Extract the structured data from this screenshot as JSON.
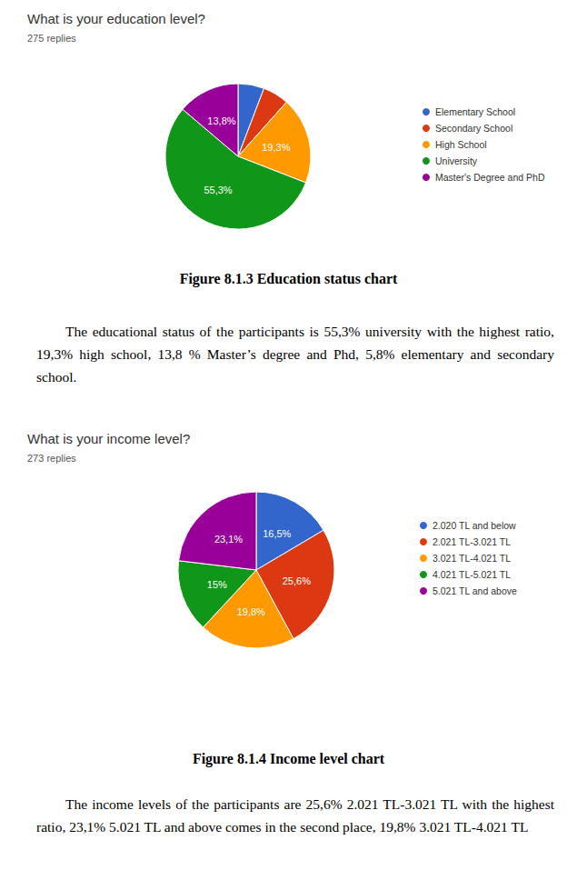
{
  "chart_data": [
    {
      "type": "pie",
      "title": "What is your education level?",
      "subtitle": "275 replies",
      "categories": [
        "Elementary School",
        "Secondary School",
        "High School",
        "University",
        "Master's Degree and PhD"
      ],
      "values": [
        5.8,
        5.8,
        19.3,
        55.3,
        13.8
      ],
      "value_labels": [
        null,
        null,
        "19,3%",
        "55,3%",
        "13,8%"
      ],
      "colors": [
        "#3366cc",
        "#dc3912",
        "#ff9900",
        "#109618",
        "#990099"
      ],
      "data_labels": true,
      "legend": "right"
    },
    {
      "type": "pie",
      "title": "What is your income level?",
      "subtitle": "273 replies",
      "categories": [
        "2.020 TL and below",
        "2.021 TL-3.021 TL",
        "3.021 TL-4.021 TL",
        "4.021 TL-5.021 TL",
        "5.021 TL and above"
      ],
      "values": [
        16.5,
        25.6,
        19.8,
        15,
        23.1
      ],
      "value_labels": [
        "16,5%",
        "25,6%",
        "19,8%",
        "15%",
        "23,1%"
      ],
      "colors": [
        "#3366cc",
        "#dc3912",
        "#ff9900",
        "#109618",
        "#990099"
      ],
      "data_labels": true,
      "legend": "right"
    }
  ],
  "captions": [
    "Figure 8.1.3 Education status chart",
    "Figure 8.1.4 Income level chart"
  ],
  "paragraphs": [
    "The educational status of the participants is 55,3% university with the highest ratio, 19,3% high school, 13,8 % Master’s degree and Phd, 5,8% elementary and secondary school.",
    "The income levels of the participants are 25,6% 2.021 TL-3.021 TL with the highest ratio, 23,1% 5.021 TL and above comes in the second place, 19,8% 3.021 TL-4.021 TL"
  ]
}
